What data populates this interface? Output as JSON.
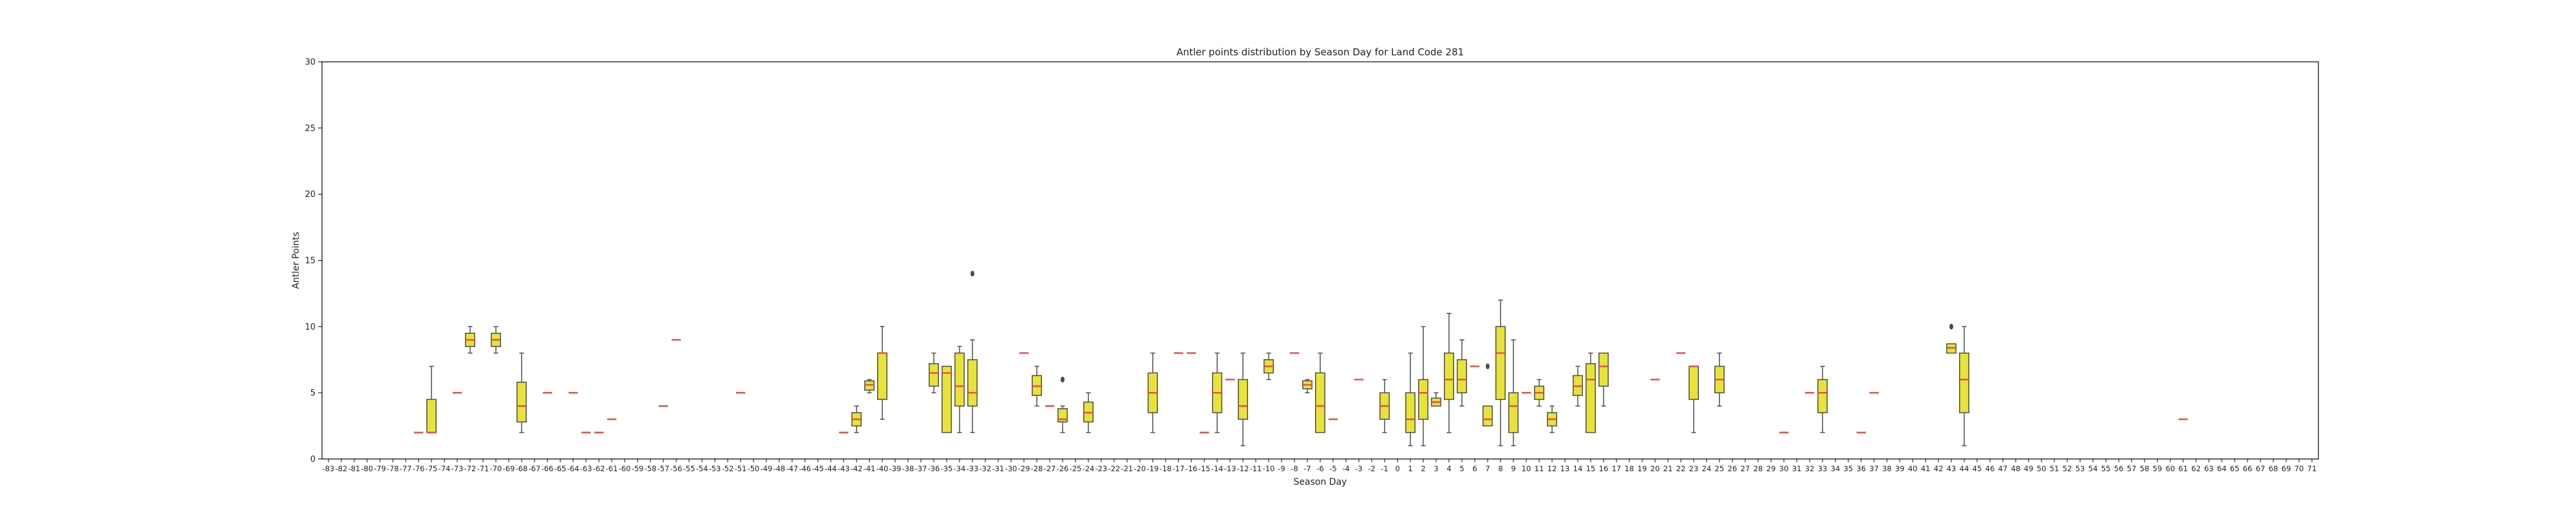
{
  "chart_data": {
    "type": "box",
    "title": "Antler points distribution by Season Day for Land Code 281",
    "xlabel": "Season Day",
    "ylabel": "Antler Points",
    "ylim": [
      0,
      30
    ],
    "y_ticks": [
      0,
      5,
      10,
      15,
      20,
      25,
      30
    ],
    "categories": [
      "-83",
      "-82",
      "-81",
      "-80",
      "-79",
      "-78",
      "-77",
      "-76",
      "-75",
      "-74",
      "-73",
      "-72",
      "-71",
      "-70",
      "-69",
      "-68",
      "-67",
      "-66",
      "-65",
      "-64",
      "-63",
      "-62",
      "-61",
      "-60",
      "-59",
      "-58",
      "-57",
      "-56",
      "-55",
      "-54",
      "-53",
      "-52",
      "-51",
      "-50",
      "-49",
      "-48",
      "-47",
      "-46",
      "-45",
      "-44",
      "-43",
      "-42",
      "-41",
      "-40",
      "-39",
      "-38",
      "-37",
      "-36",
      "-35",
      "-34",
      "-33",
      "-32",
      "-31",
      "-30",
      "-29",
      "-28",
      "-27",
      "-26",
      "-25",
      "-24",
      "-23",
      "-22",
      "-21",
      "-20",
      "-19",
      "-18",
      "-17",
      "-16",
      "-15",
      "-14",
      "-13",
      "-12",
      "-11",
      "-10",
      "-9",
      "-8",
      "-7",
      "-6",
      "-5",
      "-4",
      "-3",
      "-2",
      "-1",
      "0",
      "1",
      "2",
      "3",
      "4",
      "5",
      "6",
      "7",
      "8",
      "9",
      "10",
      "11",
      "12",
      "13",
      "14",
      "15",
      "16",
      "17",
      "18",
      "19",
      "20",
      "21",
      "22",
      "23",
      "24",
      "25",
      "26",
      "27",
      "28",
      "29",
      "30",
      "31",
      "32",
      "33",
      "34",
      "35",
      "36",
      "37",
      "38",
      "39",
      "40",
      "41",
      "42",
      "43",
      "44",
      "45",
      "46",
      "47",
      "48",
      "49",
      "50",
      "51",
      "52",
      "53",
      "54",
      "55",
      "56",
      "57",
      "58",
      "59",
      "60",
      "61",
      "62",
      "63",
      "64",
      "65",
      "66",
      "67",
      "68",
      "69",
      "70",
      "71"
    ],
    "boxes": [
      {
        "day": -76,
        "min": 2,
        "q1": 2,
        "median": 2,
        "q3": 2,
        "max": 2
      },
      {
        "day": -75,
        "min": 2,
        "q1": 2,
        "median": 2,
        "q3": 4.5,
        "max": 7
      },
      {
        "day": -73,
        "min": 5,
        "q1": 5,
        "median": 5,
        "q3": 5,
        "max": 5
      },
      {
        "day": -72,
        "min": 8,
        "q1": 8.5,
        "median": 9,
        "q3": 9.5,
        "max": 10
      },
      {
        "day": -70,
        "min": 8,
        "q1": 8.5,
        "median": 9,
        "q3": 9.5,
        "max": 10
      },
      {
        "day": -68,
        "min": 2,
        "q1": 2.8,
        "median": 4,
        "q3": 5.8,
        "max": 8
      },
      {
        "day": -66,
        "min": 5,
        "q1": 5,
        "median": 5,
        "q3": 5,
        "max": 5
      },
      {
        "day": -64,
        "min": 5,
        "q1": 5,
        "median": 5,
        "q3": 5,
        "max": 5
      },
      {
        "day": -63,
        "min": 2,
        "q1": 2,
        "median": 2,
        "q3": 2,
        "max": 2
      },
      {
        "day": -62,
        "min": 2,
        "q1": 2,
        "median": 2,
        "q3": 2,
        "max": 2
      },
      {
        "day": -61,
        "min": 3,
        "q1": 3,
        "median": 3,
        "q3": 3,
        "max": 3
      },
      {
        "day": -57,
        "min": 4,
        "q1": 4,
        "median": 4,
        "q3": 4,
        "max": 4
      },
      {
        "day": -56,
        "min": 9,
        "q1": 9,
        "median": 9,
        "q3": 9,
        "max": 9
      },
      {
        "day": -51,
        "min": 5,
        "q1": 5,
        "median": 5,
        "q3": 5,
        "max": 5
      },
      {
        "day": -43,
        "min": 2,
        "q1": 2,
        "median": 2,
        "q3": 2,
        "max": 2
      },
      {
        "day": -42,
        "min": 2,
        "q1": 2.5,
        "median": 3,
        "q3": 3.5,
        "max": 4
      },
      {
        "day": -41,
        "min": 5,
        "q1": 5.2,
        "median": 5.6,
        "q3": 5.9,
        "max": 6
      },
      {
        "day": -40,
        "min": 3,
        "q1": 4.5,
        "median": 8,
        "q3": 8,
        "max": 10
      },
      {
        "day": -36,
        "min": 5,
        "q1": 5.5,
        "median": 6.5,
        "q3": 7.2,
        "max": 8
      },
      {
        "day": -35,
        "min": 2,
        "q1": 2,
        "median": 6.5,
        "q3": 7,
        "max": 7
      },
      {
        "day": -34,
        "min": 2,
        "q1": 4,
        "median": 5.5,
        "q3": 8,
        "max": 8.5
      },
      {
        "day": -33,
        "min": 2,
        "q1": 4,
        "median": 5,
        "q3": 7.5,
        "max": 9,
        "outliers": [
          14
        ]
      },
      {
        "day": -29,
        "min": 8,
        "q1": 8,
        "median": 8,
        "q3": 8,
        "max": 8
      },
      {
        "day": -28,
        "min": 4,
        "q1": 4.8,
        "median": 5.5,
        "q3": 6.3,
        "max": 7
      },
      {
        "day": -27,
        "min": 4,
        "q1": 4,
        "median": 4,
        "q3": 4,
        "max": 4
      },
      {
        "day": -26,
        "min": 2,
        "q1": 2.8,
        "median": 3,
        "q3": 3.8,
        "max": 4,
        "outliers": [
          6
        ]
      },
      {
        "day": -24,
        "min": 2,
        "q1": 2.8,
        "median": 3.5,
        "q3": 4.3,
        "max": 5
      },
      {
        "day": -19,
        "min": 2,
        "q1": 3.5,
        "median": 5,
        "q3": 6.5,
        "max": 8
      },
      {
        "day": -17,
        "min": 8,
        "q1": 8,
        "median": 8,
        "q3": 8,
        "max": 8
      },
      {
        "day": -16,
        "min": 8,
        "q1": 8,
        "median": 8,
        "q3": 8,
        "max": 8
      },
      {
        "day": -15,
        "min": 2,
        "q1": 2,
        "median": 2,
        "q3": 2,
        "max": 2
      },
      {
        "day": -14,
        "min": 2,
        "q1": 3.5,
        "median": 5,
        "q3": 6.5,
        "max": 8
      },
      {
        "day": -13,
        "min": 6,
        "q1": 6,
        "median": 6,
        "q3": 6,
        "max": 6
      },
      {
        "day": -12,
        "min": 1,
        "q1": 3,
        "median": 4,
        "q3": 6,
        "max": 8
      },
      {
        "day": -10,
        "min": 6,
        "q1": 6.5,
        "median": 7,
        "q3": 7.5,
        "max": 8
      },
      {
        "day": -8,
        "min": 8,
        "q1": 8,
        "median": 8,
        "q3": 8,
        "max": 8
      },
      {
        "day": -7,
        "min": 5,
        "q1": 5.3,
        "median": 5.6,
        "q3": 5.9,
        "max": 6
      },
      {
        "day": -6,
        "min": 2,
        "q1": 2,
        "median": 4,
        "q3": 6.5,
        "max": 8
      },
      {
        "day": -5,
        "min": 3,
        "q1": 3,
        "median": 3,
        "q3": 3,
        "max": 3
      },
      {
        "day": -3,
        "min": 6,
        "q1": 6,
        "median": 6,
        "q3": 6,
        "max": 6
      },
      {
        "day": -1,
        "min": 2,
        "q1": 3,
        "median": 4,
        "q3": 5,
        "max": 6
      },
      {
        "day": 1,
        "min": 1,
        "q1": 2,
        "median": 3,
        "q3": 5,
        "max": 8
      },
      {
        "day": 2,
        "min": 1,
        "q1": 3,
        "median": 5,
        "q3": 6,
        "max": 10
      },
      {
        "day": 3,
        "min": 4,
        "q1": 4,
        "median": 4.3,
        "q3": 4.6,
        "max": 5
      },
      {
        "day": 4,
        "min": 2,
        "q1": 4.5,
        "median": 6,
        "q3": 8,
        "max": 11
      },
      {
        "day": 5,
        "min": 4,
        "q1": 5,
        "median": 6,
        "q3": 7.5,
        "max": 9
      },
      {
        "day": 6,
        "min": 7,
        "q1": 7,
        "median": 7,
        "q3": 7,
        "max": 7
      },
      {
        "day": 7,
        "min": 2.5,
        "q1": 2.5,
        "median": 3,
        "q3": 4,
        "max": 4,
        "outliers": [
          7
        ]
      },
      {
        "day": 8,
        "min": 1,
        "q1": 4.5,
        "median": 8,
        "q3": 10,
        "max": 12
      },
      {
        "day": 9,
        "min": 1,
        "q1": 2,
        "median": 4,
        "q3": 5,
        "max": 9
      },
      {
        "day": 10,
        "min": 5,
        "q1": 5,
        "median": 5,
        "q3": 5,
        "max": 5
      },
      {
        "day": 11,
        "min": 4,
        "q1": 4.5,
        "median": 5,
        "q3": 5.5,
        "max": 6
      },
      {
        "day": 12,
        "min": 2,
        "q1": 2.5,
        "median": 3,
        "q3": 3.5,
        "max": 4
      },
      {
        "day": 14,
        "min": 4,
        "q1": 4.8,
        "median": 5.5,
        "q3": 6.3,
        "max": 7
      },
      {
        "day": 15,
        "min": 2,
        "q1": 2,
        "median": 6,
        "q3": 7.2,
        "max": 8
      },
      {
        "day": 16,
        "min": 4,
        "q1": 5.5,
        "median": 7,
        "q3": 8,
        "max": 8
      },
      {
        "day": 20,
        "min": 6,
        "q1": 6,
        "median": 6,
        "q3": 6,
        "max": 6
      },
      {
        "day": 22,
        "min": 8,
        "q1": 8,
        "median": 8,
        "q3": 8,
        "max": 8
      },
      {
        "day": 23,
        "min": 2,
        "q1": 4.5,
        "median": 7,
        "q3": 7,
        "max": 7
      },
      {
        "day": 25,
        "min": 4,
        "q1": 5,
        "median": 6,
        "q3": 7,
        "max": 8
      },
      {
        "day": 30,
        "min": 2,
        "q1": 2,
        "median": 2,
        "q3": 2,
        "max": 2
      },
      {
        "day": 32,
        "min": 5,
        "q1": 5,
        "median": 5,
        "q3": 5,
        "max": 5
      },
      {
        "day": 33,
        "min": 2,
        "q1": 3.5,
        "median": 5,
        "q3": 6,
        "max": 7
      },
      {
        "day": 36,
        "min": 2,
        "q1": 2,
        "median": 2,
        "q3": 2,
        "max": 2
      },
      {
        "day": 37,
        "min": 5,
        "q1": 5,
        "median": 5,
        "q3": 5,
        "max": 5
      },
      {
        "day": 43,
        "min": 8,
        "q1": 8,
        "median": 8.4,
        "q3": 8.7,
        "max": 8.7,
        "outliers": [
          10
        ]
      },
      {
        "day": 44,
        "min": 1,
        "q1": 3.5,
        "median": 6,
        "q3": 8,
        "max": 10
      },
      {
        "day": 61,
        "min": 3,
        "q1": 3,
        "median": 3,
        "q3": 3,
        "max": 3
      }
    ],
    "colors": {
      "box_fill": "#e8e337",
      "box_edge": "#4d4d4d",
      "median": "#e8504a",
      "whisker": "#4d4d4d",
      "axis": "#000000"
    },
    "grid": false
  }
}
